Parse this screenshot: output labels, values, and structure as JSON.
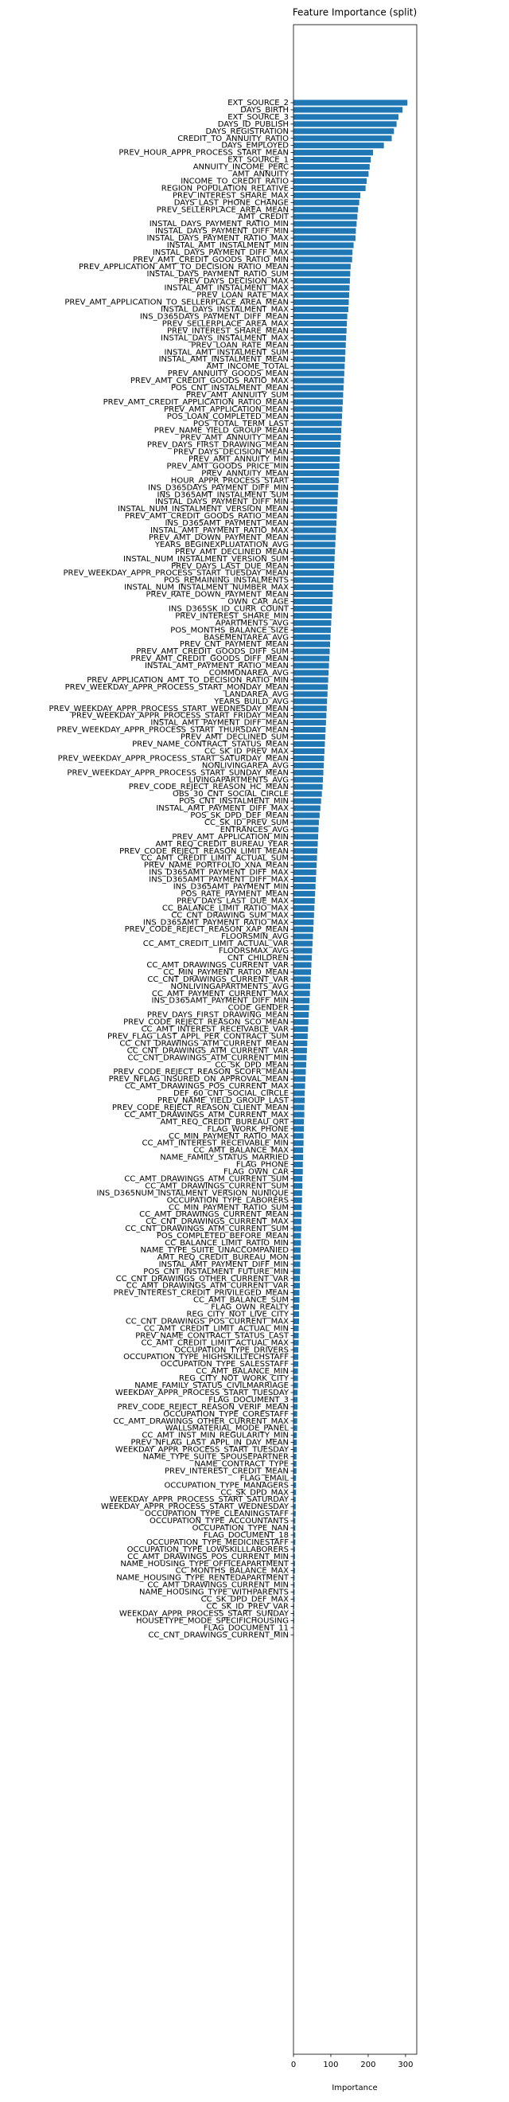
{
  "chart_data": {
    "type": "barh",
    "title": "Feature Importance (split)",
    "xlabel": "Importance",
    "color": "#1f77b4",
    "xlim": [
      0,
      330
    ],
    "xticks": [
      0,
      100,
      200,
      300
    ],
    "categories": [
      "EXT_SOURCE_2",
      "DAYS_BIRTH",
      "EXT_SOURCE_3",
      "DAYS_ID_PUBLISH",
      "DAYS_REGISTRATION",
      "CREDIT_TO_ANNUITY_RATIO",
      "DAYS_EMPLOYED",
      "PREV_HOUR_APPR_PROCESS_START_MEAN",
      "EXT_SOURCE_1",
      "ANNUITY_INCOME_PERC",
      "AMT_ANNUITY",
      "INCOME_TO_CREDIT_RATIO",
      "REGION_POPULATION_RELATIVE",
      "PREV_INTEREST_SHARE_MAX",
      "DAYS_LAST_PHONE_CHANGE",
      "PREV_SELLERPLACE_AREA_MEAN",
      "AMT_CREDIT",
      "INSTAL_DAYS_PAYMENT_RATIO_MIN",
      "INSTAL_DAYS_PAYMENT_DIFF_MIN",
      "INSTAL_DAYS_PAYMENT_RATIO_MAX",
      "INSTAL_AMT_INSTALMENT_MIN",
      "INSTAL_DAYS_PAYMENT_DIFF_MAX",
      "PREV_AMT_CREDIT_GOODS_RATIO_MIN",
      "PREV_APPLICATION_AMT_TO_DECISION_RATIO_MEAN",
      "INSTAL_DAYS_PAYMENT_RATIO_SUM",
      "PREV_DAYS_DECISION_MAX",
      "INSTAL_AMT_INSTALMENT_MAX",
      "PREV_LOAN_RATE_MAX",
      "PREV_AMT_APPLICATION_TO_SELLERPLACE_AREA_MEAN",
      "INSTAL_DAYS_INSTALMENT_MAX",
      "INS_D365DAYS_PAYMENT_DIFF_MEAN",
      "PREV_SELLERPLACE_AREA_MAX",
      "PREV_INTEREST_SHARE_MEAN",
      "INSTAL_DAYS_INSTALMENT_MAX",
      "PREV_LOAN_RATE_MEAN",
      "INSTAL_AMT_INSTALMENT_SUM",
      "INSTAL_AMT_INSTALMENT_MEAN",
      "AMT_INCOME_TOTAL",
      "PREV_ANNUITY_GOODS_MEAN",
      "PREV_AMT_CREDIT_GOODS_RATIO_MAX",
      "POS_CNT_INSTALMENT_MEAN",
      "PREV_AMT_ANNUITY_SUM",
      "PREV_AMT_CREDIT_APPLICATION_RATIO_MEAN",
      "PREV_AMT_APPLICATION_MEAN",
      "POS_LOAN_COMPLETED_MEAN",
      "POS_TOTAL_TERM_LAST",
      "PREV_NAME_YIELD_GROUP_MEAN",
      "PREV_AMT_ANNUITY_MEAN",
      "PREV_DAYS_FIRST_DRAWING_MEAN",
      "PREV_DAYS_DECISION_MEAN",
      "PREV_AMT_ANNUITY_MIN",
      "PREV_AMT_GOODS_PRICE_MIN",
      "PREV_ANNUITY_MEAN",
      "HOUR_APPR_PROCESS_START",
      "INS_D365DAYS_PAYMENT_DIFF_MIN",
      "INS_D365AMT_INSTALMENT_SUM",
      "INSTAL_DAYS_PAYMENT_DIFF_MIN",
      "INSTAL_NUM_INSTALMENT_VERSION_MEAN",
      "PREV_AMT_CREDIT_GOODS_RATIO_MEAN",
      "INS_D365AMT_PAYMENT_MEAN",
      "INSTAL_AMT_PAYMENT_RATIO_MAX",
      "PREV_AMT_DOWN_PAYMENT_MEAN",
      "YEARS_BEGINEXPLUATATION_AVG",
      "PREV_AMT_DECLINED_MEAN",
      "INSTAL_NUM_INSTALMENT_VERSION_SUM",
      "PREV_DAYS_LAST_DUE_MEAN",
      "PREV_WEEKDAY_APPR_PROCESS_START_TUESDAY_MEAN",
      "POS_REMAINING_INSTALMENTS",
      "INSTAL_NUM_INSTALMENT_NUMBER_MAX",
      "PREV_RATE_DOWN_PAYMENT_MEAN",
      "OWN_CAR_AGE",
      "INS_D365SK_ID_CURR_COUNT",
      "PREV_INTEREST_SHARE_MIN",
      "APARTMENTS_AVG",
      "POS_MONTHS_BALANCE_SIZE",
      "BASEMENTAREA_AVG",
      "PREV_CNT_PAYMENT_MEAN",
      "PREV_AMT_CREDIT_GOODS_DIFF_SUM",
      "PREV_AMT_CREDIT_GOODS_DIFF_MEAN",
      "INSTAL_AMT_PAYMENT_RATIO_MEAN",
      "COMMONAREA_AVG",
      "PREV_APPLICATION_AMT_TO_DECISION_RATIO_MIN",
      "PREV_WEEKDAY_APPR_PROCESS_START_MONDAY_MEAN",
      "LANDAREA_AVG",
      "YEARS_BUILD_AVG",
      "PREV_WEEKDAY_APPR_PROCESS_START_WEDNESDAY_MEAN",
      "PREV_WEEKDAY_APPR_PROCESS_START_FRIDAY_MEAN",
      "INSTAL_AMT_PAYMENT_DIFF_MEAN",
      "PREV_WEEKDAY_APPR_PROCESS_START_THURSDAY_MEAN",
      "PREV_AMT_DECLINED_SUM",
      "PREV_NAME_CONTRACT_STATUS_MEAN",
      "CC_SK_ID_PREV_MAX",
      "PREV_WEEKDAY_APPR_PROCESS_START_SATURDAY_MEAN",
      "NONLIVINGAREA_AVG",
      "PREV_WEEKDAY_APPR_PROCESS_START_SUNDAY_MEAN",
      "LIVINGAPARTMENTS_AVG",
      "PREV_CODE_REJECT_REASON_HC_MEAN",
      "OBS_30_CNT_SOCIAL_CIRCLE",
      "POS_CNT_INSTALMENT_MIN",
      "INSTAL_AMT_PAYMENT_DIFF_MAX",
      "POS_SK_DPD_DEF_MEAN",
      "CC_SK_ID_PREV_SUM",
      "ENTRANCES_AVG",
      "PREV_AMT_APPLICATION_MIN",
      "AMT_REQ_CREDIT_BUREAU_YEAR",
      "PREV_CODE_REJECT_REASON_LIMIT_MEAN",
      "CC_AMT_CREDIT_LIMIT_ACTUAL_SUM",
      "PREV_NAME_PORTFOLIO_XNA_MEAN",
      "INS_D365AMT_PAYMENT_DIFF_MAX",
      "INS_D365AMT_PAYMENT_DIFF_MAX",
      "INS_D365AMT_PAYMENT_MIN",
      "POS_RATE_PAYMENT_MEAN",
      "PREV_DAYS_LAST_DUE_MAX",
      "CC_BALANCE_LIMIT_RATIO_MAX",
      "CC_CNT_DRAWING_SUM_MAX",
      "INS_D365AMT_PAYMENT_RATIO_MAX",
      "PREV_CODE_REJECT_REASON_XAP_MEAN",
      "FLOORSMIN_AVG",
      "CC_AMT_CREDIT_LIMIT_ACTUAL_VAR",
      "FLOORSMAX_AVG",
      "CNT_CHILDREN",
      "CC_AMT_DRAWINGS_CURRENT_VAR",
      "CC_MIN_PAYMENT_RATIO_MEAN",
      "CC_CNT_DRAWINGS_CURRENT_VAR",
      "NONLIVINGAPARTMENTS_AVG",
      "CC_AMT_PAYMENT_CURRENT_MAX",
      "INS_D365AMT_PAYMENT_DIFF_MIN",
      "CODE_GENDER",
      "PREV_DAYS_FIRST_DRAWING_MEAN",
      "PREV_CODE_REJECT_REASON_SCO_MEAN",
      "CC_AMT_INTEREST_RECEIVABLE_VAR",
      "PREV_FLAG_LAST_APPL_PER_CONTRACT_SUM",
      "CC_CNT_DRAWINGS_ATM_CURRENT_MEAN",
      "CC_CNT_DRAWINGS_ATM_CURRENT_VAR",
      "CC_CNT_DRAWINGS_ATM_CURRENT_MIN",
      "CC_SK_DPD_MEAN",
      "PREV_CODE_REJECT_REASON_SCOFR_MEAN",
      "PREV_NFLAG_INSURED_ON_APPROVAL_MEAN",
      "CC_AMT_DRAWINGS_POS_CURRENT_MAX",
      "DEF_60_CNT_SOCIAL_CIRCLE",
      "PREV_NAME_YIELD_GROUP_LAST",
      "PREV_CODE_REJECT_REASON_CLIENT_MEAN",
      "CC_AMT_DRAWINGS_ATM_CURRENT_MAX",
      "AMT_REQ_CREDIT_BUREAU_QRT",
      "FLAG_WORK_PHONE",
      "CC_MIN_PAYMENT_RATIO_MAX",
      "CC_AMT_INTEREST_RECEIVABLE_MIN",
      "CC_AMT_BALANCE_MAX",
      "NAME_FAMILY_STATUS_MARRIED",
      "FLAG_PHONE",
      "FLAG_OWN_CAR",
      "CC_AMT_DRAWINGS_ATM_CURRENT_SUM",
      "CC_AMT_DRAWINGS_CURRENT_SUM",
      "INS_D365NUM_INSTALMENT_VERSION_NUNIQUE",
      "OCCUPATION_TYPE_LABORERS",
      "CC_MIN_PAYMENT_RATIO_SUM",
      "CC_AMT_DRAWINGS_CURRENT_MEAN",
      "CC_CNT_DRAWINGS_CURRENT_MAX",
      "CC_CNT_DRAWINGS_ATM_CURRENT_SUM",
      "POS_COMPLETED_BEFORE_MEAN",
      "CC_BALANCE_LIMIT_RATIO_MIN",
      "NAME_TYPE_SUITE_UNACCOMPANIED",
      "AMT_REQ_CREDIT_BUREAU_MON",
      "INSTAL_AMT_PAYMENT_DIFF_MIN",
      "POS_CNT_INSTALMENT_FUTURE_MIN",
      "CC_CNT_DRAWINGS_OTHER_CURRENT_VAR",
      "CC_AMT_DRAWINGS_ATM_CURRENT_VAR",
      "PREV_INTEREST_CREDIT_PRIVILEGED_MEAN",
      "CC_AMT_BALANCE_SUM",
      "FLAG_OWN_REALTY",
      "REG_CITY_NOT_LIVE_CITY",
      "CC_CNT_DRAWINGS_POS_CURRENT_MAX",
      "CC_AMT_CREDIT_LIMIT_ACTUAL_MIN",
      "PREV_NAME_CONTRACT_STATUS_LAST",
      "CC_AMT_CREDIT_LIMIT_ACTUAL_MAX",
      "OCCUPATION_TYPE_DRIVERS",
      "OCCUPATION_TYPE_HIGHSKILLTECHSTAFF",
      "OCCUPATION_TYPE_SALESSTAFF",
      "CC_AMT_BALANCE_MIN",
      "REG_CITY_NOT_WORK_CITY",
      "NAME_FAMILY_STATUS_CIVILMARRIAGE",
      "WEEKDAY_APPR_PROCESS_START_TUESDAY",
      "FLAG_DOCUMENT_3",
      "PREV_CODE_REJECT_REASON_VERIF_MEAN",
      "OCCUPATION_TYPE_CORESTAFF",
      "CC_AMT_DRAWINGS_OTHER_CURRENT_MAX",
      "WALLSMATERIAL_MODE_PANEL",
      "CC_AMT_INST_MIN_REGULARITY_MIN",
      "PREV_NFLAG_LAST_APPL_IN_DAY_MEAN",
      "WEEKDAY_APPR_PROCESS_START_TUESDAY",
      "NAME_TYPE_SUITE_SPOUSEPARTNER",
      "NAME_CONTRACT_TYPE",
      "PREV_INTEREST_CREDIT_MEAN",
      "FLAG_EMAIL",
      "OCCUPATION_TYPE_MANAGERS",
      "CC_SK_DPD_MAX",
      "WEEKDAY_APPR_PROCESS_START_SATURDAY",
      "WEEKDAY_APPR_PROCESS_START_WEDNESDAY",
      "OCCUPATION_TYPE_CLEANINGSTAFF",
      "OCCUPATION_TYPE_ACCOUNTANTS",
      "OCCUPATION_TYPE_NAN",
      "FLAG_DOCUMENT_18",
      "OCCUPATION_TYPE_MEDICINESTAFF",
      "OCCUPATION_TYPE_LOWSKILLLABORERS",
      "CC_AMT_DRAWINGS_POS_CURRENT_MIN",
      "NAME_HOUSING_TYPE_OFFICEAPARTMENT",
      "CC_MONTHS_BALANCE_MAX",
      "NAME_HOUSING_TYPE_RENTEDAPARTMENT",
      "CC_AMT_DRAWINGS_CURRENT_MIN",
      "NAME_HOUSING_TYPE_WITHPARENTS",
      "CC_SK_DPD_DEF_MAX",
      "CC_SK_ID_PREV_VAR",
      "WEEKDAY_APPR_PROCESS_START_SUNDAY",
      "HOUSETYPE_MODE_SPECIFICHOUSING",
      "FLAG_DOCUMENT_11",
      "CC_CNT_DRAWINGS_CURRENT_MIN"
    ],
    "values": [
      305,
      292,
      281,
      276,
      269,
      263,
      242,
      213,
      207,
      204,
      201,
      196,
      193,
      179,
      176,
      173,
      171,
      169,
      167,
      166,
      161,
      158,
      157,
      153,
      152,
      151,
      150,
      149,
      148,
      147,
      144,
      143,
      142,
      141,
      140,
      139,
      138,
      137,
      136,
      135,
      134,
      133,
      132,
      131,
      130,
      129,
      128,
      127,
      126,
      125,
      124,
      123,
      122,
      121,
      120,
      119,
      118,
      117,
      116,
      115,
      114,
      113,
      112,
      111,
      110,
      109,
      108,
      107,
      106,
      105,
      104,
      103,
      102,
      101,
      100,
      99,
      98,
      97,
      96,
      95,
      94,
      93,
      92,
      91,
      90,
      89,
      88,
      87,
      86,
      85,
      84,
      83,
      82,
      81,
      80,
      79,
      78,
      76,
      74,
      72,
      70,
      68,
      67,
      66,
      65,
      64,
      63,
      62,
      61,
      60,
      59,
      58,
      57,
      56,
      55,
      54,
      53,
      52,
      51,
      50,
      49,
      48,
      47,
      46,
      45,
      44,
      43,
      42,
      41,
      40,
      39,
      38,
      37,
      36,
      35,
      34,
      33,
      32,
      31,
      30,
      30,
      29,
      29,
      28,
      28,
      27,
      27,
      26,
      26,
      25,
      25,
      24,
      24,
      23,
      23,
      22,
      22,
      21,
      21,
      20,
      20,
      19,
      19,
      18,
      18,
      17,
      17,
      16,
      16,
      15,
      15,
      15,
      14,
      14,
      14,
      13,
      13,
      13,
      12,
      12,
      12,
      11,
      11,
      11,
      10,
      10,
      10,
      9,
      9,
      9,
      8,
      8,
      8,
      7,
      7,
      7,
      6,
      6,
      6,
      5,
      5,
      5,
      5,
      4,
      4,
      4,
      4,
      3,
      3,
      3,
      3,
      2,
      2,
      2,
      1,
      1
    ]
  }
}
